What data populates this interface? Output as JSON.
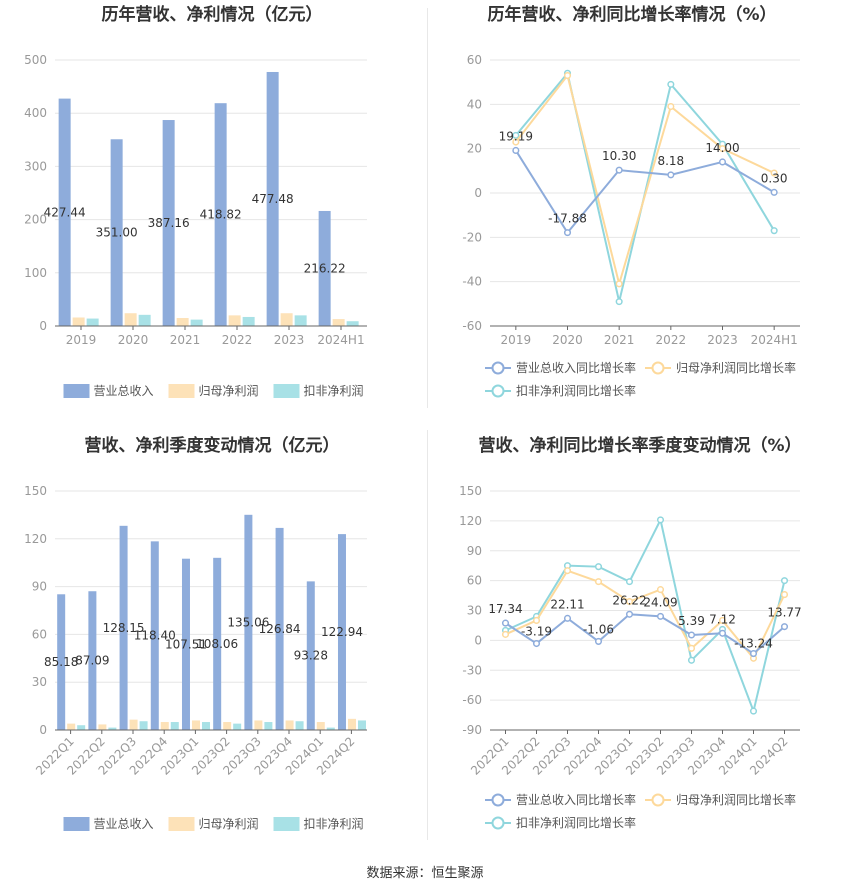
{
  "source": "数据来源：恒生聚源",
  "colors": {
    "revenue": "#8eacdb",
    "parent_profit": "#fde2b8",
    "deducted_profit": "#a8e1e6",
    "rev_line": "#8eacdb",
    "parent_line": "#fdd99b",
    "deducted_line": "#8fd6dd",
    "axis_text": "#999999",
    "grid": "#e6e6e6",
    "title": "#333333"
  },
  "chart_data": [
    {
      "type": "bar",
      "title": "历年营收、净利情况（亿元）",
      "categories": [
        "2019",
        "2020",
        "2021",
        "2022",
        "2023",
        "2024H1"
      ],
      "series": [
        {
          "name": "营业总收入",
          "values": [
            427.44,
            351.0,
            387.16,
            418.82,
            477.48,
            216.22
          ]
        },
        {
          "name": "归母净利润",
          "values": [
            16,
            24,
            15,
            20,
            24,
            13
          ]
        },
        {
          "name": "扣非净利润",
          "values": [
            14,
            21,
            12,
            17,
            20,
            9
          ]
        }
      ],
      "data_labels": [
        "427.44",
        "351.00",
        "387.16",
        "418.82",
        "477.48",
        "216.22"
      ],
      "ylim": [
        0,
        500
      ],
      "yticks": [
        "0",
        "100",
        "200",
        "300",
        "400",
        "500"
      ],
      "legend_position": "bottom",
      "grid": true
    },
    {
      "type": "line",
      "title": "历年营收、净利同比增长率情况（%）",
      "categories": [
        "2019",
        "2020",
        "2021",
        "2022",
        "2023",
        "2024H1"
      ],
      "series": [
        {
          "name": "营业总收入同比增长率",
          "values": [
            19.19,
            -17.88,
            10.3,
            8.18,
            14.0,
            0.3
          ]
        },
        {
          "name": "归母净利润同比增长率",
          "values": [
            23,
            53,
            -41,
            39,
            20,
            9
          ]
        },
        {
          "name": "扣非净利润同比增长率",
          "values": [
            26,
            54,
            -49,
            49,
            22,
            -17
          ]
        }
      ],
      "data_labels": [
        "19.19",
        "-17.88",
        "10.30",
        "8.18",
        "14.00",
        "0.30"
      ],
      "ylim": [
        -60,
        60
      ],
      "yticks": [
        "-60",
        "-40",
        "-20",
        "0",
        "20",
        "40",
        "60"
      ],
      "legend_position": "bottom",
      "grid": true
    },
    {
      "type": "bar",
      "title": "营收、净利季度变动情况（亿元）",
      "categories": [
        "2022Q1",
        "2022Q2",
        "2022Q3",
        "2022Q4",
        "2023Q1",
        "2023Q2",
        "2023Q3",
        "2023Q4",
        "2024Q1",
        "2024Q2"
      ],
      "series": [
        {
          "name": "营业总收入",
          "values": [
            85.18,
            87.09,
            128.15,
            118.4,
            107.51,
            108.06,
            135.06,
            126.84,
            93.28,
            122.94
          ]
        },
        {
          "name": "归母净利润",
          "values": [
            4,
            3.5,
            6.5,
            5,
            6,
            5,
            6,
            6,
            5,
            7
          ]
        },
        {
          "name": "扣非净利润",
          "values": [
            3,
            1.5,
            5.5,
            5,
            5,
            4,
            5,
            5.5,
            1.5,
            6
          ]
        }
      ],
      "data_labels": [
        "85.18",
        "87.09",
        "128.15",
        "118.40",
        "107.51",
        "108.06",
        "135.06",
        "126.84",
        "93.28",
        "122.94"
      ],
      "ylim": [
        0,
        150
      ],
      "yticks": [
        "0",
        "30",
        "60",
        "90",
        "120",
        "150"
      ],
      "legend_position": "bottom",
      "grid": true
    },
    {
      "type": "line",
      "title": "营收、净利同比增长率季度变动情况（%）",
      "categories": [
        "2022Q1",
        "2022Q2",
        "2022Q3",
        "2022Q4",
        "2023Q1",
        "2023Q2",
        "2023Q3",
        "2023Q4",
        "2024Q1",
        "2024Q2"
      ],
      "series": [
        {
          "name": "营业总收入同比增长率",
          "values": [
            17.34,
            -3.19,
            22.11,
            -1.06,
            26.22,
            24.09,
            5.39,
            7.12,
            -13.24,
            13.77
          ]
        },
        {
          "name": "归母净利润同比增长率",
          "values": [
            6,
            20,
            70,
            59,
            39,
            51,
            -8,
            20,
            -18,
            46
          ]
        },
        {
          "name": "扣非净利润同比增长率",
          "values": [
            10,
            24,
            75,
            74,
            59,
            121,
            -20,
            11,
            -71,
            60
          ]
        }
      ],
      "data_labels": [
        "17.34",
        "-3.19",
        "22.11",
        "-1.06",
        "26.22",
        "24.09",
        "5.39",
        "7.12",
        "-13.24",
        "13.77"
      ],
      "ylim": [
        -90,
        150
      ],
      "yticks": [
        "-90",
        "-60",
        "-30",
        "0",
        "30",
        "60",
        "90",
        "120",
        "150"
      ],
      "legend_position": "bottom",
      "grid": true
    }
  ]
}
